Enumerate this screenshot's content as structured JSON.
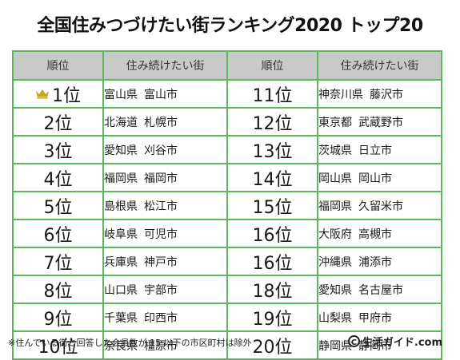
{
  "title": "全国住みつづけたい街ランキング2020 トップ20",
  "headers": {
    "rank": "順位",
    "city": "住み続けたい街"
  },
  "left": [
    {
      "rank": "1位",
      "pref": "富山県",
      "city": "富山市",
      "crown": true
    },
    {
      "rank": "2位",
      "pref": "北海道",
      "city": "札幌市"
    },
    {
      "rank": "3位",
      "pref": "愛知県",
      "city": "刈谷市"
    },
    {
      "rank": "4位",
      "pref": "福岡県",
      "city": "福岡市"
    },
    {
      "rank": "5位",
      "pref": "島根県",
      "city": "松江市"
    },
    {
      "rank": "6位",
      "pref": "岐阜県",
      "city": "可児市"
    },
    {
      "rank": "7位",
      "pref": "兵庫県",
      "city": "神戸市"
    },
    {
      "rank": "8位",
      "pref": "山口県",
      "city": "宇部市"
    },
    {
      "rank": "9位",
      "pref": "千葉県",
      "city": "印西市"
    },
    {
      "rank": "10位",
      "pref": "奈良県",
      "city": "橿原市"
    }
  ],
  "right": [
    {
      "rank": "11位",
      "pref": "神奈川県",
      "city": "藤沢市"
    },
    {
      "rank": "12位",
      "pref": "東京都",
      "city": "武蔵野市"
    },
    {
      "rank": "13位",
      "pref": "茨城県",
      "city": "日立市"
    },
    {
      "rank": "14位",
      "pref": "岡山県",
      "city": "岡山市"
    },
    {
      "rank": "15位",
      "pref": "福岡県",
      "city": "久留米市"
    },
    {
      "rank": "16位",
      "pref": "大阪府",
      "city": "高槻市"
    },
    {
      "rank": "16位",
      "pref": "沖縄県",
      "city": "浦添市"
    },
    {
      "rank": "18位",
      "pref": "愛知県",
      "city": "名古屋市"
    },
    {
      "rank": "19位",
      "pref": "山梨県",
      "city": "甲府市"
    },
    {
      "rank": "20位",
      "pref": "静岡県",
      "city": "静岡市"
    }
  ],
  "footer": {
    "note": "※住んでいる街と回答した会員数が 15 以下の市区町村は除外",
    "copyright_symbol": "C",
    "site": "生活ガイド.com"
  },
  "colors": {
    "border": "#5cb85c",
    "header_bg": "#c9c9c9",
    "crown": "#c9a227"
  },
  "icons": {
    "crown": "crown-icon"
  }
}
